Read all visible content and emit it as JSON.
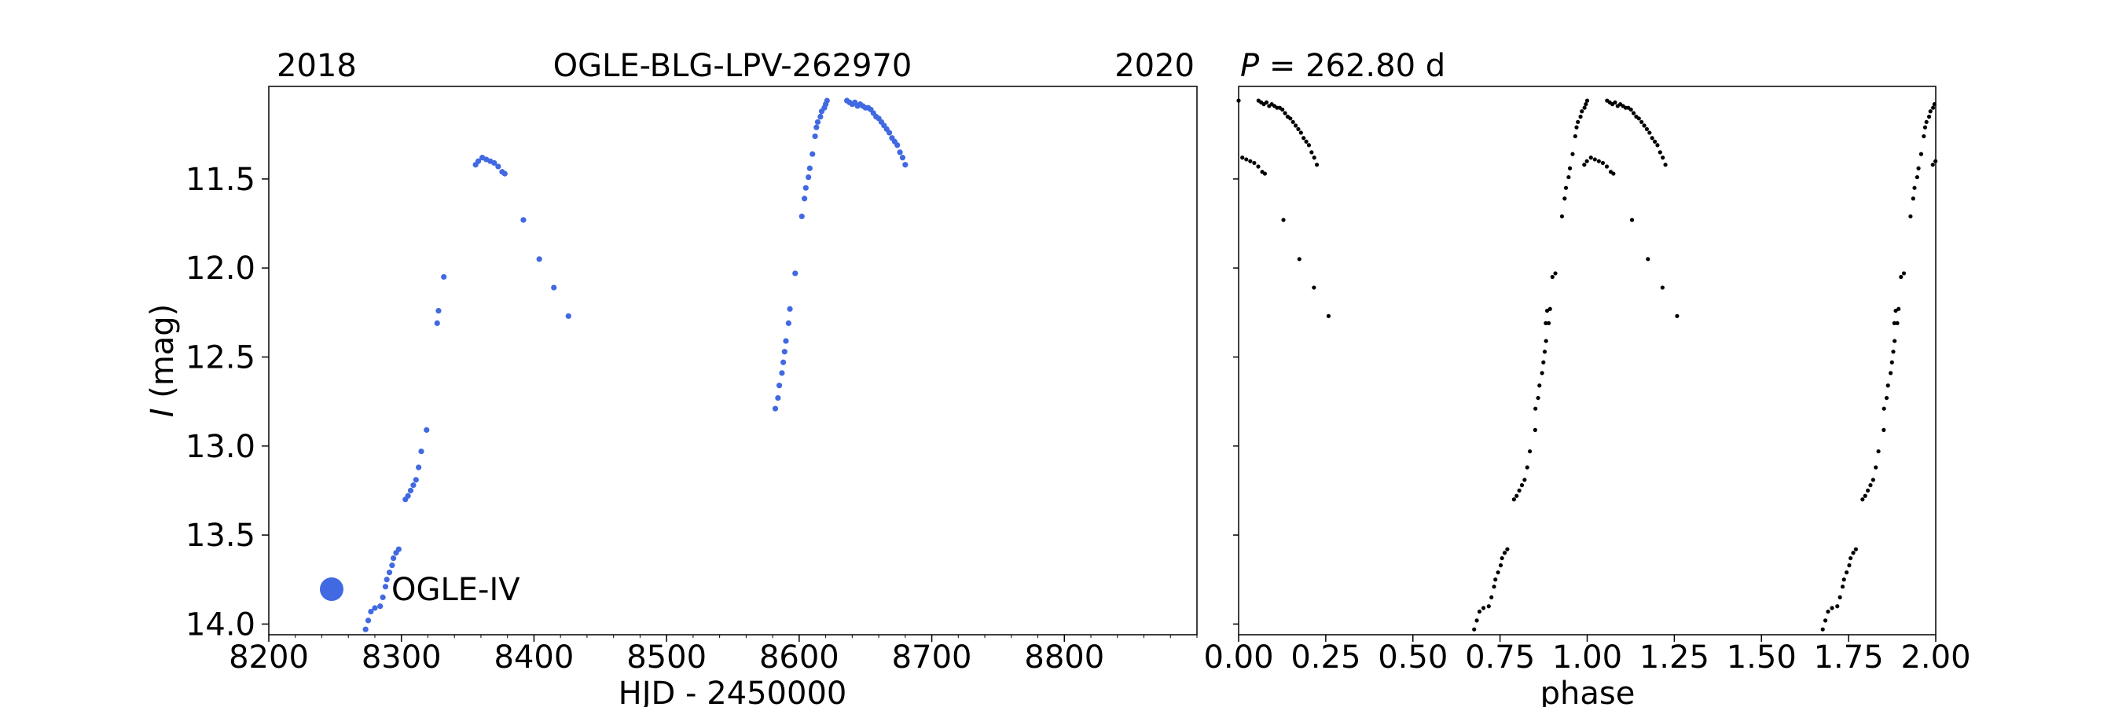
{
  "chart_data": [
    {
      "type": "scatter",
      "title": "OGLE-BLG-LPV-262970",
      "year_left": "2018",
      "year_right": "2020",
      "xlabel": "HJD - 2450000",
      "ylabel_italic": "I",
      "ylabel_rest": " (mag)",
      "xlim": [
        8200,
        8900
      ],
      "ylim": [
        14.06,
        10.98
      ],
      "y_inverted": true,
      "xticks": [
        8200,
        8300,
        8400,
        8500,
        8600,
        8700,
        8800
      ],
      "xtick_labels": [
        "8200",
        "8300",
        "8400",
        "8500",
        "8600",
        "8700",
        "8800"
      ],
      "yticks": [
        11.5,
        12.0,
        12.5,
        13.0,
        13.5,
        14.0
      ],
      "ytick_labels": [
        "11.5",
        "12.0",
        "12.5",
        "13.0",
        "13.5",
        "14.0"
      ],
      "grid": false,
      "legend": {
        "placement": "lower-left",
        "label": "OGLE-IV",
        "color": "#4169e1"
      },
      "series": [
        {
          "name": "OGLE-IV",
          "color": "#4169e1",
          "points": [
            [
              8273,
              14.03
            ],
            [
              8275,
              13.98
            ],
            [
              8277,
              13.93
            ],
            [
              8280,
              13.91
            ],
            [
              8284,
              13.9
            ],
            [
              8286,
              13.85
            ],
            [
              8288,
              13.79
            ],
            [
              8289,
              13.75
            ],
            [
              8291,
              13.71
            ],
            [
              8293,
              13.67
            ],
            [
              8294,
              13.63
            ],
            [
              8296,
              13.6
            ],
            [
              8298,
              13.58
            ],
            [
              8303,
              13.3
            ],
            [
              8305,
              13.28
            ],
            [
              8307,
              13.25
            ],
            [
              8309,
              13.22
            ],
            [
              8311,
              13.19
            ],
            [
              8313,
              13.12
            ],
            [
              8315,
              13.03
            ],
            [
              8319,
              12.91
            ],
            [
              8327,
              12.31
            ],
            [
              8328,
              12.24
            ],
            [
              8332,
              12.05
            ],
            [
              8356,
              11.42
            ],
            [
              8358,
              11.4
            ],
            [
              8361,
              11.38
            ],
            [
              8364,
              11.39
            ],
            [
              8367,
              11.4
            ],
            [
              8370,
              11.41
            ],
            [
              8373,
              11.43
            ],
            [
              8376,
              11.46
            ],
            [
              8378,
              11.47
            ],
            [
              8392,
              11.73
            ],
            [
              8404,
              11.95
            ],
            [
              8415,
              12.11
            ],
            [
              8426,
              12.27
            ],
            [
              8582,
              12.79
            ],
            [
              8584,
              12.73
            ],
            [
              8585,
              12.66
            ],
            [
              8587,
              12.59
            ],
            [
              8588,
              12.53
            ],
            [
              8589,
              12.47
            ],
            [
              8590,
              12.41
            ],
            [
              8592,
              12.31
            ],
            [
              8593,
              12.23
            ],
            [
              8597,
              12.03
            ],
            [
              8602,
              11.71
            ],
            [
              8604,
              11.61
            ],
            [
              8605,
              11.55
            ],
            [
              8607,
              11.49
            ],
            [
              8608,
              11.44
            ],
            [
              8610,
              11.36
            ],
            [
              8612,
              11.26
            ],
            [
              8613,
              11.21
            ],
            [
              8614,
              11.18
            ],
            [
              8616,
              11.15
            ],
            [
              8617,
              11.12
            ],
            [
              8619,
              11.1
            ],
            [
              8620,
              11.08
            ],
            [
              8621,
              11.06
            ],
            [
              8636,
              11.06
            ],
            [
              8638,
              11.07
            ],
            [
              8640,
              11.08
            ],
            [
              8642,
              11.07
            ],
            [
              8644,
              11.09
            ],
            [
              8646,
              11.08
            ],
            [
              8648,
              11.09
            ],
            [
              8650,
              11.1
            ],
            [
              8652,
              11.1
            ],
            [
              8654,
              11.11
            ],
            [
              8656,
              11.13
            ],
            [
              8658,
              11.15
            ],
            [
              8660,
              11.16
            ],
            [
              8662,
              11.18
            ],
            [
              8664,
              11.2
            ],
            [
              8666,
              11.22
            ],
            [
              8668,
              11.24
            ],
            [
              8670,
              11.27
            ],
            [
              8672,
              11.29
            ],
            [
              8674,
              11.31
            ],
            [
              8676,
              11.35
            ],
            [
              8678,
              11.38
            ],
            [
              8680,
              11.42
            ]
          ]
        }
      ]
    },
    {
      "type": "scatter",
      "title": "P = 262.80 d",
      "title_italic": "P",
      "title_rest": " = 262.80 d",
      "xlabel": "phase",
      "xlim": [
        0.0,
        2.0
      ],
      "ylim": [
        14.06,
        10.98
      ],
      "y_inverted": true,
      "shares_y_with_left_panel": true,
      "period_days": 262.8,
      "xticks": [
        0.0,
        0.25,
        0.5,
        0.75,
        1.0,
        1.25,
        1.5,
        1.75,
        2.0
      ],
      "xtick_labels": [
        "0.00",
        "0.25",
        "0.50",
        "0.75",
        "1.00",
        "1.25",
        "1.50",
        "1.75",
        "2.00"
      ],
      "grid": false,
      "series": [
        {
          "name": "",
          "color": "#000000",
          "phase_period_days": 262.8,
          "phase_zero_hjd": 8621,
          "phase_repeats": 2
        }
      ]
    }
  ]
}
